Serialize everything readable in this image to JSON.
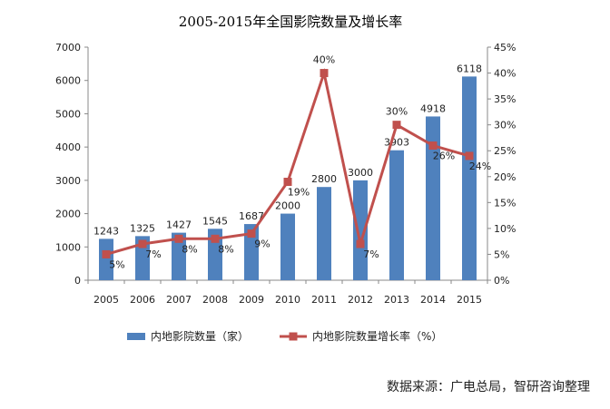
{
  "chart_data": {
    "type": "bar",
    "title": "2005-2015年全国影院数量及增长率",
    "categories": [
      "2005",
      "2006",
      "2007",
      "2008",
      "2009",
      "2010",
      "2011",
      "2012",
      "2013",
      "2014",
      "2015"
    ],
    "series": [
      {
        "name": "内地影院数量（家）",
        "kind": "bar",
        "axis": "left",
        "color": "#4F81BD",
        "values": [
          1243,
          1325,
          1427,
          1545,
          1687,
          2000,
          2800,
          3000,
          3903,
          4918,
          6118
        ],
        "labels": [
          "1243",
          "1325",
          "1427",
          "1545",
          "1687",
          "2000",
          "2800",
          "3000",
          "3903",
          "4918",
          "6118"
        ]
      },
      {
        "name": "内地影院数量增长率（%）",
        "kind": "line",
        "axis": "right",
        "color": "#C0504D",
        "values": [
          5,
          7,
          8,
          8,
          9,
          19,
          40,
          7,
          30,
          26,
          24
        ],
        "labels": [
          "5%",
          "7%",
          "8%",
          "8%",
          "9%",
          "19%",
          "40%",
          "7%",
          "30%",
          "26%",
          "24%"
        ]
      }
    ],
    "y_left": {
      "min": 0,
      "max": 7000,
      "ticks": [
        "0",
        "1000",
        "2000",
        "3000",
        "4000",
        "5000",
        "6000",
        "7000"
      ]
    },
    "y_right": {
      "min": 0,
      "max": 45,
      "ticks": [
        "0%",
        "5%",
        "10%",
        "15%",
        "20%",
        "25%",
        "30%",
        "35%",
        "40%",
        "45%"
      ]
    },
    "grid": false,
    "legend_position": "bottom"
  },
  "source_note": "数据来源：广电总局，智研咨询整理"
}
